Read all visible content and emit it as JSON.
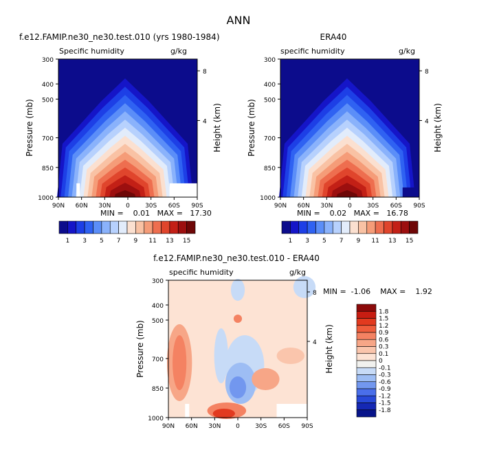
{
  "figure": {
    "main_title": "ANN"
  },
  "chart_data": [
    {
      "type": "heatmap",
      "title": "f.e12.FAMIP.ne30_ne30.test.010 (yrs 1980-1984)",
      "variable_label": "Specific humidity",
      "units": "g/kg",
      "ylabel": "Pressure (mb)",
      "y2label": "Height (km)",
      "y_ticks": [
        "300",
        "400",
        "500",
        "700",
        "850",
        "1000"
      ],
      "y2_ticks": [
        "8",
        "4"
      ],
      "x_ticks": [
        "90N",
        "60N",
        "30N",
        "0",
        "30S",
        "60S",
        "90S"
      ],
      "stats": "MIN =    0.01   MAX =   17.30",
      "colorbar": {
        "levels": [
          "1",
          "3",
          "5",
          "7",
          "9",
          "11",
          "13",
          "15"
        ],
        "colors": [
          "#0c0c8c",
          "#1515c8",
          "#1d3fe6",
          "#2f62f2",
          "#5b8ef8",
          "#8ab2fb",
          "#b7d1fd",
          "#e2ecfb",
          "#fbe0d0",
          "#f9c2a4",
          "#f59c78",
          "#ee6e4f",
          "#e0452c",
          "#c32016",
          "#9c0f0f",
          "#6e0707"
        ]
      }
    },
    {
      "type": "heatmap",
      "title": "ERA40",
      "variable_label": "specific humidity",
      "units": "g/kg",
      "ylabel": "Pressure (mb)",
      "y2label": "Height (km)",
      "y_ticks": [
        "300",
        "400",
        "500",
        "700",
        "850",
        "1000"
      ],
      "y2_ticks": [
        "8",
        "4"
      ],
      "x_ticks": [
        "90N",
        "60N",
        "30N",
        "0",
        "30S",
        "60S",
        "90S"
      ],
      "stats": "MIN =    0.02   MAX =   16.78",
      "colorbar": {
        "levels": [
          "1",
          "3",
          "5",
          "7",
          "9",
          "11",
          "13",
          "15"
        ],
        "colors": [
          "#0c0c8c",
          "#1515c8",
          "#1d3fe6",
          "#2f62f2",
          "#5b8ef8",
          "#8ab2fb",
          "#b7d1fd",
          "#e2ecfb",
          "#fbe0d0",
          "#f9c2a4",
          "#f59c78",
          "#ee6e4f",
          "#e0452c",
          "#c32016",
          "#9c0f0f",
          "#6e0707"
        ]
      }
    },
    {
      "type": "heatmap",
      "title": "f.e12.FAMIP.ne30_ne30.test.010 - ERA40",
      "variable_label": "specific humidity",
      "units": "g/kg",
      "ylabel": "Pressure (mb)",
      "y2label": "Height (km)",
      "y_ticks": [
        "300",
        "400",
        "500",
        "700",
        "850",
        "1000"
      ],
      "y2_ticks": [
        "8",
        "4"
      ],
      "x_ticks": [
        "90N",
        "60N",
        "30N",
        "0",
        "30S",
        "60S",
        "90S"
      ],
      "stats": "MIN =  -1.06    MAX =    1.92",
      "colorbar": {
        "levels": [
          "1.8",
          "1.5",
          "1.2",
          "0.9",
          "0.6",
          "0.3",
          "0.1",
          "0",
          "-0.1",
          "-0.3",
          "-0.6",
          "-0.9",
          "-1.2",
          "-1.5",
          "-1.8"
        ],
        "colors": [
          "#8c0a0a",
          "#c71d12",
          "#e23a1f",
          "#ef5d3c",
          "#f48262",
          "#f7a687",
          "#fac5ac",
          "#fde3d4",
          "#f1f1ee",
          "#c7dbf7",
          "#9dbdf4",
          "#7297ef",
          "#4a6fea",
          "#2849d8",
          "#1528b4",
          "#07148a"
        ]
      }
    }
  ]
}
